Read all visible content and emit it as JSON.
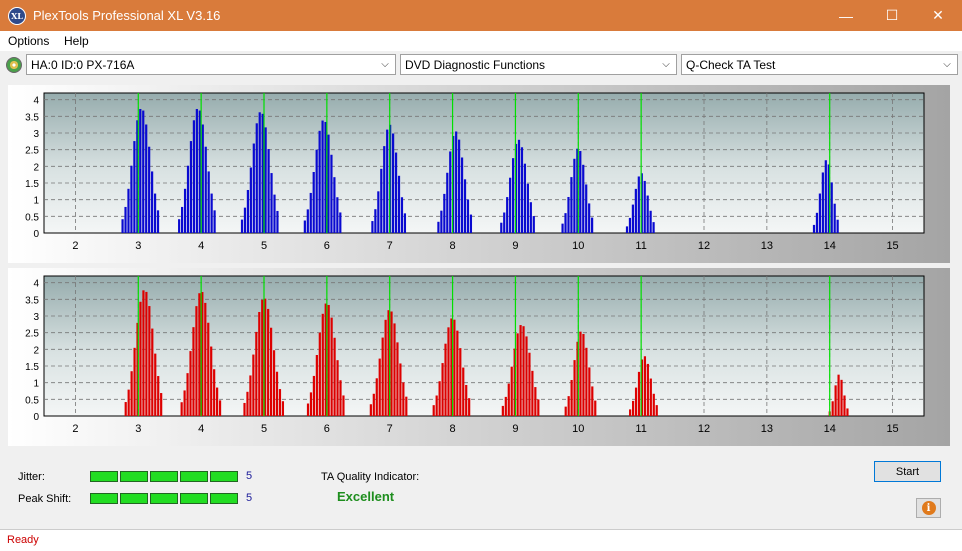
{
  "window": {
    "title": "PlexTools Professional XL V3.16",
    "icon_label": "XL",
    "minimize_glyph": "—",
    "maximize_glyph": "☐",
    "close_glyph": "✕"
  },
  "menu": {
    "items": [
      "Options",
      "Help"
    ]
  },
  "toolbar": {
    "drive": "HA:0 ID:0  PX-716A",
    "function": "DVD Diagnostic Functions",
    "test": "Q-Check TA Test",
    "chevron_glyph": "⌵"
  },
  "chart_data": [
    {
      "type": "bar",
      "name": "top-graph",
      "color": "#0a0ad0",
      "x_ticks": [
        2,
        3,
        4,
        5,
        6,
        7,
        8,
        9,
        10,
        11,
        12,
        13,
        14,
        15
      ],
      "y_ticks": [
        0,
        0.5,
        1,
        1.5,
        2,
        2.5,
        3,
        3.5,
        4
      ],
      "y_tick_labels": [
        "0",
        "0.5",
        "1",
        "1.5",
        "2",
        "2.5",
        "3",
        "3.5",
        "4"
      ],
      "xlim": [
        1.5,
        15.5
      ],
      "ylim": [
        0,
        4.2
      ],
      "reference_lines": [
        3,
        4,
        5,
        6,
        7,
        8,
        9,
        10,
        11,
        14
      ],
      "reference_color": "#00e000",
      "peaks": [
        {
          "center": 3.05,
          "height": 3.75,
          "width": 0.6
        },
        {
          "center": 3.95,
          "height": 3.75,
          "width": 0.6
        },
        {
          "center": 4.95,
          "height": 3.65,
          "width": 0.6
        },
        {
          "center": 5.95,
          "height": 3.4,
          "width": 0.6
        },
        {
          "center": 7.0,
          "height": 3.25,
          "width": 0.55
        },
        {
          "center": 8.05,
          "height": 3.05,
          "width": 0.55
        },
        {
          "center": 9.05,
          "height": 2.8,
          "width": 0.55
        },
        {
          "center": 10.0,
          "height": 2.55,
          "width": 0.5
        },
        {
          "center": 11.0,
          "height": 1.8,
          "width": 0.45
        },
        {
          "center": 13.95,
          "height": 2.2,
          "width": 0.4
        }
      ]
    },
    {
      "type": "bar",
      "name": "bottom-graph",
      "color": "#dd0000",
      "x_ticks": [
        2,
        3,
        4,
        5,
        6,
        7,
        8,
        9,
        10,
        11,
        12,
        13,
        14,
        15
      ],
      "y_ticks": [
        0,
        0.5,
        1,
        1.5,
        2,
        2.5,
        3,
        3.5,
        4
      ],
      "y_tick_labels": [
        "0",
        "0.5",
        "1",
        "1.5",
        "2",
        "2.5",
        "3",
        "3.5",
        "4"
      ],
      "xlim": [
        1.5,
        15.5
      ],
      "ylim": [
        0,
        4.2
      ],
      "reference_lines": [
        3,
        4,
        5,
        6,
        7,
        8,
        9,
        10,
        11,
        14
      ],
      "reference_color": "#00e000",
      "peaks": [
        {
          "center": 3.1,
          "height": 3.8,
          "width": 0.6
        },
        {
          "center": 4.0,
          "height": 3.75,
          "width": 0.62
        },
        {
          "center": 5.0,
          "height": 3.55,
          "width": 0.62
        },
        {
          "center": 6.0,
          "height": 3.4,
          "width": 0.6
        },
        {
          "center": 7.0,
          "height": 3.2,
          "width": 0.6
        },
        {
          "center": 8.0,
          "height": 2.95,
          "width": 0.6
        },
        {
          "center": 9.1,
          "height": 2.75,
          "width": 0.6
        },
        {
          "center": 10.05,
          "height": 2.55,
          "width": 0.5
        },
        {
          "center": 11.05,
          "height": 1.8,
          "width": 0.45
        },
        {
          "center": 14.15,
          "height": 1.25,
          "width": 0.3
        }
      ]
    }
  ],
  "results": {
    "jitter_label": "Jitter:",
    "jitter_value": "5",
    "jitter_level": 5,
    "peak_shift_label": "Peak Shift:",
    "peak_shift_value": "5",
    "peak_shift_level": 5,
    "ta_quality_label": "TA Quality Indicator:",
    "ta_quality_value": "Excellent",
    "start_label": "Start",
    "info_glyph": "i"
  },
  "status": {
    "text": "Ready"
  }
}
